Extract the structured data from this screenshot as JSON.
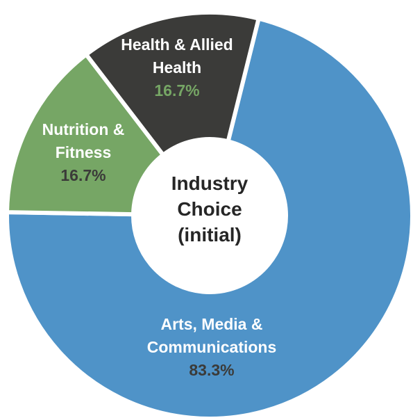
{
  "chart_data": {
    "type": "donut",
    "title": "Industry Choice (initial)",
    "categories": [
      "Arts, Media & Communications",
      "Nutrition & Fitness",
      "Health & Allied Health"
    ],
    "values": [
      83.3,
      16.7,
      16.7
    ],
    "value_labels": [
      "83.3%",
      "16.7%",
      "16.7%"
    ],
    "colors": [
      "#4f93c8",
      "#76a665",
      "#3b3b39"
    ]
  }
}
